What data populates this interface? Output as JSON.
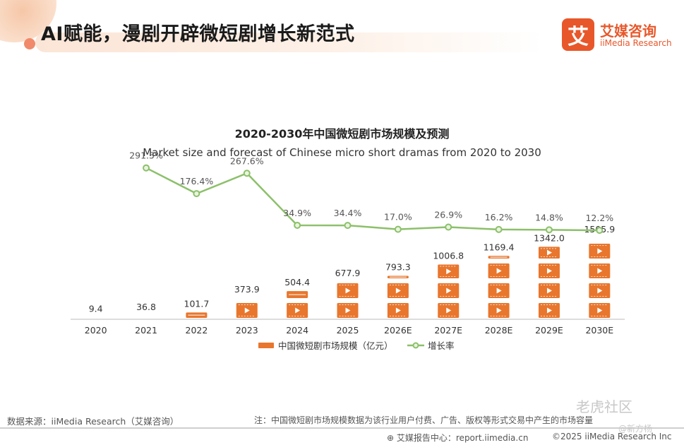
{
  "header": {
    "title": "AI赋能，漫剧开辟微短剧增长新范式",
    "logo_mark": "艾",
    "logo_cn": "艾媒咨询",
    "logo_en": "iiMedia Research"
  },
  "chart_data": {
    "type": "bar",
    "title": "2020-2030年中国微短剧市场规模及预测",
    "subtitle": "Market size and forecast of Chinese micro short dramas from 2020 to 2030",
    "categories": [
      "2020",
      "2021",
      "2022",
      "2023",
      "2024",
      "2025",
      "2026E",
      "2027E",
      "2028E",
      "2029E",
      "2030E"
    ],
    "series": [
      {
        "name": "中国微短剧市场规模（亿元）",
        "kind": "bar",
        "values": [
          9.4,
          36.8,
          101.7,
          373.9,
          504.4,
          677.9,
          793.3,
          1006.8,
          1169.4,
          1342.0,
          1505.9
        ],
        "labels": [
          "9.4",
          "36.8",
          "101.7",
          "373.9",
          "504.4",
          "677.9",
          "793.3",
          "1006.8",
          "1169.4",
          "1342.0",
          "1505.9"
        ],
        "color": "#e8762d"
      },
      {
        "name": "增长率",
        "kind": "line",
        "values": [
          null,
          291.5,
          176.4,
          267.6,
          34.9,
          34.4,
          17.0,
          26.9,
          16.2,
          14.8,
          12.2
        ],
        "labels": [
          "",
          "291.5%",
          "176.4%",
          "267.6%",
          "34.9%",
          "34.4%",
          "17.0%",
          "26.9%",
          "16.2%",
          "14.8%",
          "12.2%"
        ],
        "color": "#8cc06a"
      }
    ],
    "ylim_bar": [
      0,
      1600
    ],
    "ylim_line": [
      0,
      300
    ],
    "grid": false,
    "legend_position": "bottom"
  },
  "footer": {
    "source": "数据来源：iiMedia Research（艾媒咨询）",
    "note": "注：中国微短剧市场规模数据为该行业用户付费、广告、版权等形式交易中产生的市场容量",
    "report_center": "艾媒报告中心：report.iimedia.cn",
    "copyright": "©2025  iiMedia Research  Inc",
    "watermark": "老虎社区",
    "watermark_user": "@新方杨"
  }
}
